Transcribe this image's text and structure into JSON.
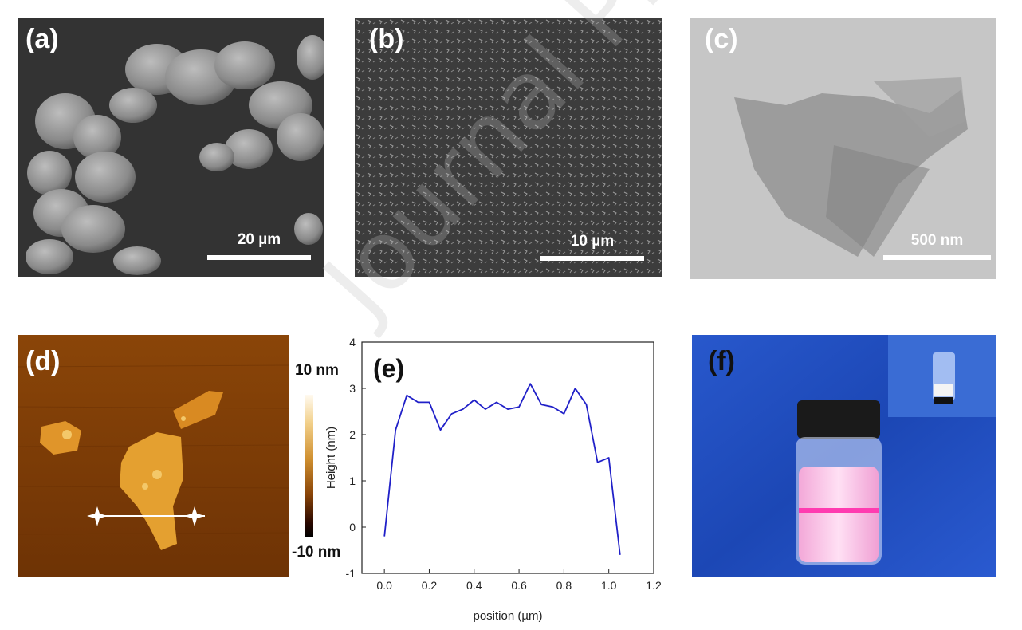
{
  "panels": {
    "a": {
      "label": "(a)",
      "scale": "20 µm"
    },
    "b": {
      "label": "(b)",
      "scale": "10 µm"
    },
    "c": {
      "label": "(c)",
      "scale": "500 nm"
    },
    "d": {
      "label": "(d)",
      "colorbar_max": "10 nm",
      "colorbar_min": "-10 nm"
    },
    "e": {
      "label": "(e)"
    },
    "f": {
      "label": "(f)"
    }
  },
  "watermark": "Journal Pre-proof",
  "colors": {
    "line": "#2020c8",
    "afm_dark": "#7a3a06",
    "afm_flake": "#e8a030",
    "cloth": "#1f4fc4"
  },
  "chart_data": {
    "type": "line",
    "xlabel": "position (µm)",
    "ylabel": "Height (nm)",
    "xlim": [
      -0.1,
      1.2
    ],
    "ylim": [
      -1,
      4
    ],
    "xticks": [
      0.0,
      0.2,
      0.4,
      0.6,
      0.8,
      1.0,
      1.2
    ],
    "yticks": [
      -1,
      0,
      1,
      2,
      3,
      4
    ],
    "grid": false,
    "x": [
      0.0,
      0.05,
      0.1,
      0.15,
      0.2,
      0.25,
      0.3,
      0.35,
      0.4,
      0.45,
      0.5,
      0.55,
      0.6,
      0.65,
      0.7,
      0.75,
      0.8,
      0.85,
      0.9,
      0.95,
      1.0,
      1.05
    ],
    "y": [
      -0.2,
      2.1,
      2.85,
      2.7,
      2.7,
      2.1,
      2.45,
      2.55,
      2.75,
      2.55,
      2.7,
      2.55,
      2.6,
      3.1,
      2.65,
      2.6,
      2.45,
      3.0,
      2.65,
      1.4,
      1.5,
      -0.6
    ]
  }
}
